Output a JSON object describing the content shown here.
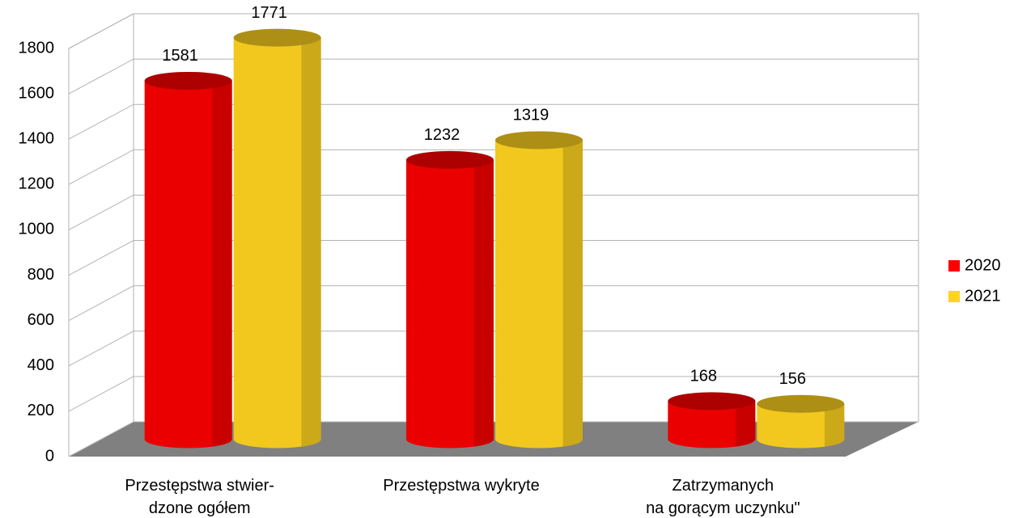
{
  "chart_data": {
    "type": "bar3d",
    "categories": [
      "Przestępstwa stwier-\ndzone ogółem",
      "Przestępstwa wykryte",
      "Zatrzymanych\nna gorącym uczynku\""
    ],
    "series": [
      {
        "name": "2020",
        "color": "#ff0000",
        "values": [
          1581,
          1232,
          168
        ]
      },
      {
        "name": "2021",
        "color": "#ffd320",
        "values": [
          1771,
          1319,
          156
        ]
      }
    ],
    "ylim": [
      0,
      1800
    ],
    "yticks": [
      0,
      200,
      400,
      600,
      800,
      1000,
      1200,
      1400,
      1600,
      1800
    ],
    "grid": true,
    "legend": "right"
  }
}
